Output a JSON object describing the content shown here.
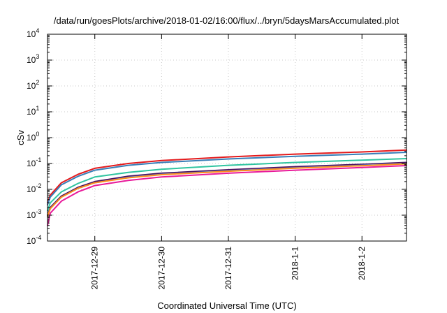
{
  "chart_data": {
    "type": "line",
    "title": "/data/run/goesPlots/archive/2018-01-02/16:00/flux/../bryn/5daysMarsAccumulated.plot",
    "xlabel": "Coordinated Universal Time (UTC)",
    "ylabel": "cSv",
    "yscale": "log",
    "ylim": [
      0.0001,
      10000
    ],
    "xlim": [
      "2017-12-28 07:00",
      "2018-01-02 16:00"
    ],
    "grid": true,
    "legend": "none",
    "y_ticks": [
      {
        "base": "10",
        "exp": "-4"
      },
      {
        "base": "10",
        "exp": "-3"
      },
      {
        "base": "10",
        "exp": "-2"
      },
      {
        "base": "10",
        "exp": "-1"
      },
      {
        "base": "10",
        "exp": "0"
      },
      {
        "base": "10",
        "exp": "1"
      },
      {
        "base": "10",
        "exp": "2"
      },
      {
        "base": "10",
        "exp": "3"
      },
      {
        "base": "10",
        "exp": "4"
      }
    ],
    "x_ticks": [
      "2017-12-29",
      "2017-12-30",
      "2017-12-31",
      "2018-1-1",
      "2018-1-2"
    ],
    "x": [
      "2017-12-28 07:00",
      "2017-12-28 08:00",
      "2017-12-28 12:00",
      "2017-12-28 18:00",
      "2017-12-29 00:00",
      "2017-12-29 12:00",
      "2017-12-30 00:00",
      "2017-12-31 00:00",
      "2018-01-01 00:00",
      "2018-01-02 00:00",
      "2018-01-02 16:00"
    ],
    "series": [
      {
        "color": "#e41a1c",
        "values": [
          0.003,
          0.006,
          0.018,
          0.038,
          0.065,
          0.1,
          0.13,
          0.18,
          0.23,
          0.28,
          0.33
        ]
      },
      {
        "color": "#377eb8",
        "values": [
          0.0025,
          0.005,
          0.015,
          0.032,
          0.055,
          0.085,
          0.11,
          0.15,
          0.19,
          0.23,
          0.27
        ]
      },
      {
        "color": "#2fc4a0",
        "values": [
          0.0015,
          0.003,
          0.008,
          0.017,
          0.03,
          0.045,
          0.06,
          0.085,
          0.11,
          0.135,
          0.155
        ]
      },
      {
        "color": "#4b1060",
        "values": [
          0.001,
          0.002,
          0.0055,
          0.012,
          0.02,
          0.032,
          0.042,
          0.057,
          0.075,
          0.093,
          0.11
        ]
      },
      {
        "color": "#6aa0d8",
        "values": [
          0.0009,
          0.0018,
          0.005,
          0.011,
          0.018,
          0.029,
          0.038,
          0.052,
          0.068,
          0.085,
          0.1
        ]
      },
      {
        "color": "#ff8c1a",
        "values": [
          0.0009,
          0.0018,
          0.005,
          0.011,
          0.018,
          0.028,
          0.037,
          0.05,
          0.066,
          0.082,
          0.097
        ]
      },
      {
        "color": "#e81a9a",
        "values": [
          0.0004,
          0.0012,
          0.0035,
          0.008,
          0.014,
          0.022,
          0.03,
          0.042,
          0.055,
          0.07,
          0.083
        ]
      }
    ]
  }
}
